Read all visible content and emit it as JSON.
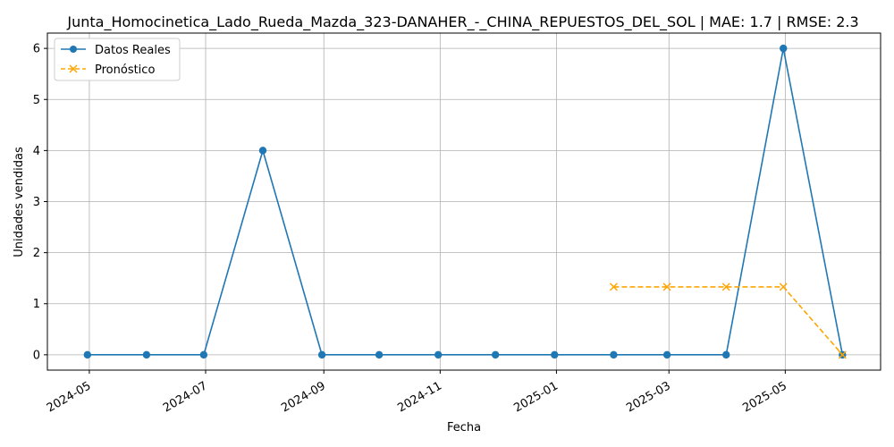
{
  "chart_data": {
    "type": "line",
    "title": "Junta_Homocinetica_Lado_Rueda_Mazda_323-DANAHER_-_CHINA_REPUESTOS_DEL_SOL | MAE: 1.7 | RMSE: 2.3",
    "xlabel": "Fecha",
    "ylabel": "Unidades vendidas",
    "x_ticks": [
      "2024-05",
      "2024-07",
      "2024-09",
      "2024-11",
      "2025-01",
      "2025-03",
      "2025-05"
    ],
    "y_ticks": [
      0,
      1,
      2,
      3,
      4,
      5,
      6
    ],
    "ylim": [
      -0.3,
      6.3
    ],
    "xlim": [
      "2024-04-09",
      "2025-06-20"
    ],
    "grid": true,
    "legend_position": "top-left",
    "series": [
      {
        "name": "Datos Reales",
        "color": "#1f77b4",
        "marker": "circle",
        "style": "solid",
        "points": [
          {
            "x": "2024-04-30",
            "y": 0
          },
          {
            "x": "2024-05-31",
            "y": 0
          },
          {
            "x": "2024-06-30",
            "y": 0
          },
          {
            "x": "2024-07-31",
            "y": 4
          },
          {
            "x": "2024-08-31",
            "y": 0
          },
          {
            "x": "2024-09-30",
            "y": 0
          },
          {
            "x": "2024-10-31",
            "y": 0
          },
          {
            "x": "2024-11-30",
            "y": 0
          },
          {
            "x": "2024-12-31",
            "y": 0
          },
          {
            "x": "2025-01-31",
            "y": 0
          },
          {
            "x": "2025-02-28",
            "y": 0
          },
          {
            "x": "2025-03-31",
            "y": 0
          },
          {
            "x": "2025-04-30",
            "y": 6
          },
          {
            "x": "2025-05-31",
            "y": 0
          }
        ]
      },
      {
        "name": "Pronóstico",
        "color": "#ffa500",
        "marker": "x",
        "style": "dashed",
        "points": [
          {
            "x": "2025-01-31",
            "y": 1.33
          },
          {
            "x": "2025-02-28",
            "y": 1.33
          },
          {
            "x": "2025-03-31",
            "y": 1.33
          },
          {
            "x": "2025-04-30",
            "y": 1.33
          },
          {
            "x": "2025-05-31",
            "y": 0
          }
        ]
      }
    ]
  }
}
